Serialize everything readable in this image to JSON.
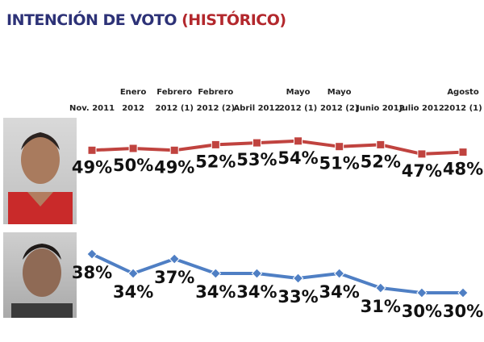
{
  "title": {
    "main": "INTENCIÓN DE VOTO",
    "accent": "(HISTÓRICO)"
  },
  "colors": {
    "title_main": "#2d3277",
    "title_accent": "#b3282d",
    "series_red": "#c0433f",
    "series_blue": "#4f7fc4"
  },
  "chart_data": {
    "type": "line",
    "categories": [
      [
        "Nov. 2011"
      ],
      [
        "Enero",
        "2012"
      ],
      [
        "Febrero",
        "2012 (1)"
      ],
      [
        "Febrero",
        "2012 (2)"
      ],
      [
        "Abril 2012"
      ],
      [
        "Mayo",
        "2012 (1)"
      ],
      [
        "Mayo",
        "2012 (2)"
      ],
      [
        "Junio 2012"
      ],
      [
        "Julio 2012"
      ],
      [
        "Agosto",
        "2012 (1)"
      ]
    ],
    "series": [
      {
        "color": "#c0433f",
        "marker": "square",
        "values": [
          49,
          50,
          49,
          52,
          53,
          54,
          51,
          52,
          47,
          48
        ],
        "labels": [
          "49%",
          "50%",
          "49%",
          "52%",
          "53%",
          "54%",
          "51%",
          "52%",
          "47%",
          "48%"
        ]
      },
      {
        "color": "#4f7fc4",
        "marker": "diamond",
        "values": [
          38,
          34,
          37,
          34,
          34,
          33,
          34,
          31,
          30,
          30
        ],
        "labels": [
          "38%",
          "34%",
          "37%",
          "34%",
          "34%",
          "33%",
          "34%",
          "31%",
          "30%",
          "30%"
        ]
      }
    ],
    "xlabel": "",
    "ylabel": "",
    "grid": false,
    "legend": "none"
  }
}
